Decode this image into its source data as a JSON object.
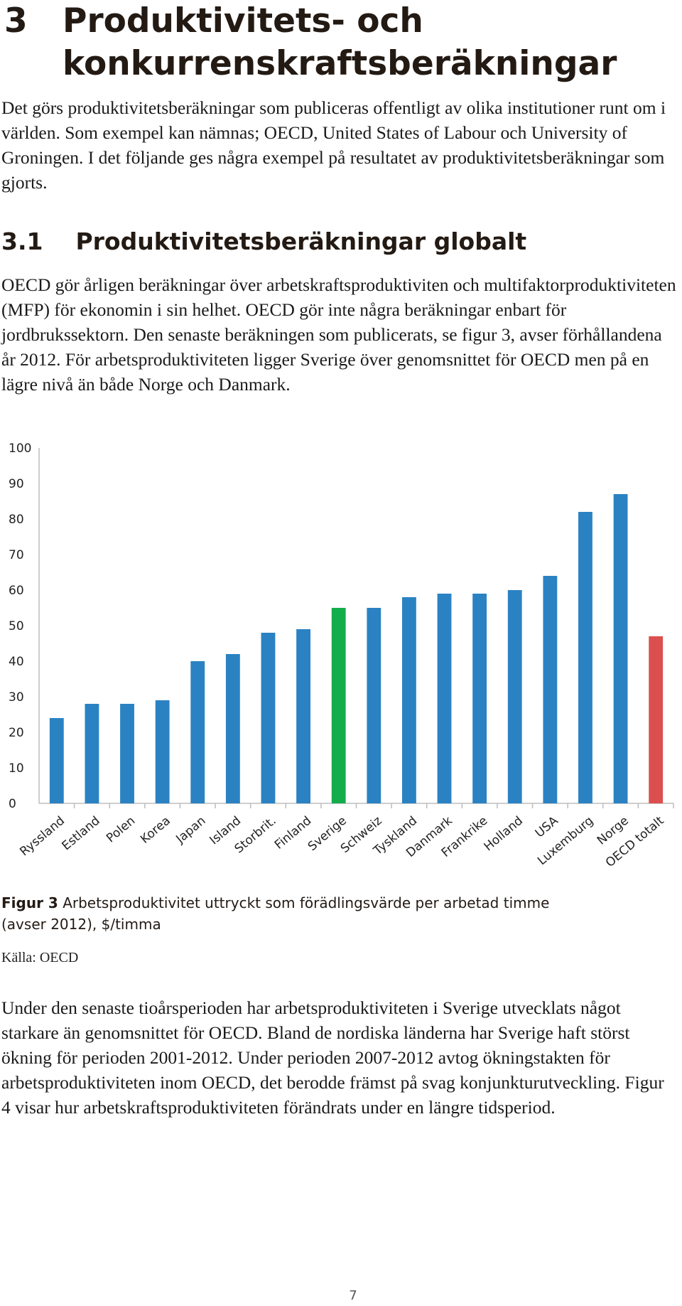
{
  "heading": {
    "number": "3",
    "title": "Produktivitets- och konkurrenskraftsberäkningar"
  },
  "intro": "Det görs produktivitetsberäkningar som publiceras offentligt av olika institutioner runt om i världen. Som exempel kan nämnas; OECD, United States of Labour och University of Groningen. I det följande ges några exempel på resultatet av produktivitetsberäkningar som gjorts.",
  "section": {
    "number": "3.1",
    "title": "Produktivitetsberäkningar globalt"
  },
  "section_text": "OECD gör årligen beräkningar över arbetskraftsproduktiviten och multifaktorproduktiviteten (MFP) för ekonomin i sin helhet. OECD gör inte några beräkningar enbart för jordbrukssektorn. Den senaste beräkningen som publicerats, se figur 3, avser förhållandena år 2012. För arbetsproduktiviteten ligger Sverige över genomsnittet för OECD men på en lägre nivå än både Norge och Danmark.",
  "chart_data": {
    "type": "bar",
    "categories": [
      "Ryssland",
      "Estland",
      "Polen",
      "Korea",
      "Japan",
      "Island",
      "Storbrit.",
      "Finland",
      "Sverige",
      "Schweiz",
      "Tyskland",
      "Danmark",
      "Frankrike",
      "Holland",
      "USA",
      "Luxemburg",
      "Norge",
      "OECD totalt"
    ],
    "values": [
      24,
      28,
      28,
      29,
      40,
      42,
      48,
      49,
      55,
      55,
      58,
      59,
      59,
      60,
      64,
      82,
      87,
      47
    ],
    "ylim": [
      0,
      100
    ],
    "yticks": [
      0,
      10,
      20,
      30,
      40,
      50,
      60,
      70,
      80,
      90,
      100
    ],
    "title": "",
    "xlabel": "",
    "ylabel": "",
    "grid": false,
    "colors": {
      "default": "#2a82c3",
      "Sverige": "#13ad4c",
      "OECD totalt": "#dc4f4f",
      "axis": "#bdbdbd"
    }
  },
  "caption": {
    "label": "Figur 3",
    "text": "Arbetsproduktivitet uttryckt som förädlingsvärde per arbetad timme (avser 2012), $/timma"
  },
  "source": "Källa: OECD",
  "closing_text": "Under den senaste tioårsperioden har arbetsproduktiviteten i Sverige utvecklats något starkare än genomsnittet för OECD. Bland de nordiska länderna har Sverige haft störst ökning för perioden 2001-2012. Under perioden 2007-2012 avtog ökningstakten för arbetsproduktiviteten inom OECD, det berodde främst på svag konjunkturutveckling. Figur 4 visar hur arbetskraftsproduktiviteten förändrats under en längre tidsperiod.",
  "page_number": "7"
}
